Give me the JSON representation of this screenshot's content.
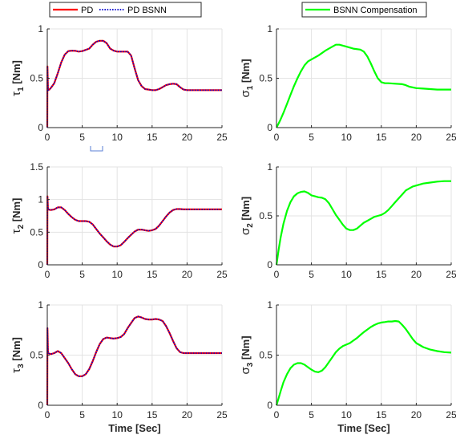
{
  "legend_left": {
    "entries": [
      {
        "label": "PD",
        "color": "#ff0000",
        "style": "solid"
      },
      {
        "label": "PD BSNN",
        "color": "#0000cc",
        "style": "dotted"
      }
    ]
  },
  "legend_right": {
    "entries": [
      {
        "label": "BSNN Compensation",
        "color": "#00ff00",
        "style": "solid"
      }
    ]
  },
  "colors": {
    "pd": "#ff0000",
    "bsnn": "#0000cc",
    "comp": "#00ff00",
    "grid": "#e3e3e3",
    "axis": "#262626"
  },
  "chart_data": [
    {
      "type": "line",
      "id": "tau1",
      "ylabel": {
        "main": "τ",
        "sub": "1",
        "unit": " [Nm]"
      },
      "xlabel": "",
      "xlim": [
        0,
        25
      ],
      "ylim": [
        0,
        1
      ],
      "xticks": [
        0,
        5,
        10,
        15,
        20,
        25
      ],
      "yticks": [
        0,
        0.5,
        1
      ],
      "grid": true,
      "series": [
        {
          "name": "PD",
          "x": [
            0,
            0.02,
            0.1,
            0.3,
            0.6,
            1,
            1.5,
            2,
            2.5,
            3,
            3.5,
            4,
            4.5,
            5,
            6,
            6.5,
            7,
            7.5,
            8,
            8.5,
            9,
            9.5,
            10,
            10.5,
            11,
            11.5,
            12,
            12.5,
            13,
            13.5,
            14,
            14.5,
            15,
            15.5,
            16,
            16.5,
            17,
            17.5,
            18,
            18.5,
            19,
            19.5,
            20,
            21,
            22,
            23,
            24,
            25
          ],
          "y": [
            0,
            0.62,
            0.38,
            0.385,
            0.41,
            0.45,
            0.55,
            0.66,
            0.74,
            0.775,
            0.78,
            0.778,
            0.77,
            0.775,
            0.8,
            0.84,
            0.87,
            0.88,
            0.88,
            0.855,
            0.8,
            0.78,
            0.77,
            0.77,
            0.77,
            0.77,
            0.73,
            0.6,
            0.48,
            0.42,
            0.39,
            0.385,
            0.38,
            0.38,
            0.39,
            0.41,
            0.43,
            0.44,
            0.445,
            0.44,
            0.41,
            0.385,
            0.38,
            0.38,
            0.38,
            0.38,
            0.38,
            0.38
          ]
        },
        {
          "name": "PD BSNN",
          "x": [
            0,
            0.02,
            0.1,
            0.3,
            0.6,
            1,
            1.5,
            2,
            2.5,
            3,
            3.5,
            4,
            4.5,
            5,
            6,
            6.5,
            7,
            7.5,
            8,
            8.5,
            9,
            9.5,
            10,
            10.5,
            11,
            11.5,
            12,
            12.5,
            13,
            13.5,
            14,
            14.5,
            15,
            15.5,
            16,
            16.5,
            17,
            17.5,
            18,
            18.5,
            19,
            19.5,
            20,
            21,
            22,
            23,
            24,
            25
          ],
          "y": [
            0,
            0.62,
            0.38,
            0.385,
            0.41,
            0.45,
            0.55,
            0.66,
            0.74,
            0.775,
            0.78,
            0.778,
            0.77,
            0.775,
            0.8,
            0.84,
            0.87,
            0.88,
            0.88,
            0.855,
            0.8,
            0.78,
            0.77,
            0.77,
            0.77,
            0.77,
            0.73,
            0.6,
            0.48,
            0.42,
            0.39,
            0.385,
            0.38,
            0.38,
            0.39,
            0.41,
            0.43,
            0.44,
            0.445,
            0.44,
            0.41,
            0.385,
            0.38,
            0.38,
            0.38,
            0.38,
            0.38,
            0.38
          ]
        }
      ]
    },
    {
      "type": "line",
      "id": "sigma1",
      "ylabel": {
        "main": "σ",
        "sub": "1",
        "unit": " [Nm]"
      },
      "xlabel": "",
      "xlim": [
        0,
        25
      ],
      "ylim": [
        0,
        1
      ],
      "xticks": [
        0,
        5,
        10,
        15,
        20,
        25
      ],
      "yticks": [
        0,
        0.5,
        1
      ],
      "grid": true,
      "series": [
        {
          "name": "BSNN Compensation",
          "x": [
            0,
            0.5,
            1,
            1.5,
            2,
            2.5,
            3,
            3.5,
            4,
            4.5,
            5,
            6,
            7,
            8,
            8.5,
            9,
            10,
            11,
            12,
            12.5,
            13,
            13.5,
            14,
            14.5,
            15,
            15.5,
            16,
            17,
            18,
            18.5,
            19,
            20,
            21,
            22,
            23,
            24,
            25
          ],
          "y": [
            0,
            0.07,
            0.15,
            0.24,
            0.33,
            0.42,
            0.5,
            0.57,
            0.63,
            0.67,
            0.69,
            0.73,
            0.78,
            0.82,
            0.84,
            0.84,
            0.82,
            0.8,
            0.79,
            0.77,
            0.72,
            0.65,
            0.57,
            0.5,
            0.46,
            0.45,
            0.45,
            0.445,
            0.44,
            0.43,
            0.415,
            0.4,
            0.395,
            0.39,
            0.385,
            0.385,
            0.385
          ]
        }
      ]
    },
    {
      "type": "line",
      "id": "tau2",
      "ylabel": {
        "main": "τ",
        "sub": "2",
        "unit": " [Nm]"
      },
      "xlabel": "",
      "xlim": [
        0,
        25
      ],
      "ylim": [
        0,
        1.5
      ],
      "xticks": [
        0,
        5,
        10,
        15,
        20,
        25
      ],
      "yticks": [
        0,
        0.5,
        1,
        1.5
      ],
      "grid": true,
      "series": [
        {
          "name": "PD",
          "x": [
            0,
            0.02,
            0.1,
            0.5,
            1,
            1.5,
            2,
            2.5,
            3,
            3.5,
            4,
            4.5,
            5,
            5.5,
            6,
            6.5,
            7,
            7.5,
            8,
            8.5,
            9,
            9.5,
            10,
            10.5,
            11,
            11.5,
            12,
            12.5,
            13,
            13.5,
            14,
            14.5,
            15,
            15.5,
            16,
            16.5,
            17,
            17.5,
            18,
            18.5,
            19,
            19.5,
            20,
            21,
            22,
            23,
            24,
            25
          ],
          "y": [
            0,
            1.05,
            0.85,
            0.84,
            0.85,
            0.88,
            0.88,
            0.84,
            0.78,
            0.73,
            0.69,
            0.67,
            0.67,
            0.67,
            0.66,
            0.62,
            0.55,
            0.48,
            0.42,
            0.36,
            0.31,
            0.28,
            0.28,
            0.3,
            0.35,
            0.41,
            0.46,
            0.51,
            0.54,
            0.54,
            0.53,
            0.52,
            0.53,
            0.55,
            0.6,
            0.67,
            0.74,
            0.8,
            0.84,
            0.855,
            0.855,
            0.85,
            0.85,
            0.85,
            0.85,
            0.85,
            0.85,
            0.85
          ]
        },
        {
          "name": "PD BSNN",
          "x": [
            0,
            0.02,
            0.1,
            0.5,
            1,
            1.5,
            2,
            2.5,
            3,
            3.5,
            4,
            4.5,
            5,
            5.5,
            6,
            6.5,
            7,
            7.5,
            8,
            8.5,
            9,
            9.5,
            10,
            10.5,
            11,
            11.5,
            12,
            12.5,
            13,
            13.5,
            14,
            14.5,
            15,
            15.5,
            16,
            16.5,
            17,
            17.5,
            18,
            18.5,
            19,
            19.5,
            20,
            21,
            22,
            23,
            24,
            25
          ],
          "y": [
            0,
            1.05,
            0.85,
            0.84,
            0.85,
            0.88,
            0.88,
            0.84,
            0.78,
            0.73,
            0.69,
            0.67,
            0.67,
            0.67,
            0.66,
            0.62,
            0.55,
            0.48,
            0.42,
            0.36,
            0.31,
            0.28,
            0.28,
            0.3,
            0.35,
            0.41,
            0.46,
            0.51,
            0.54,
            0.54,
            0.53,
            0.52,
            0.53,
            0.55,
            0.6,
            0.67,
            0.74,
            0.8,
            0.84,
            0.855,
            0.855,
            0.85,
            0.85,
            0.85,
            0.85,
            0.85,
            0.85,
            0.85
          ]
        }
      ]
    },
    {
      "type": "line",
      "id": "sigma2",
      "ylabel": {
        "main": "σ",
        "sub": "2",
        "unit": " [Nm]"
      },
      "xlabel": "",
      "xlim": [
        0,
        25
      ],
      "ylim": [
        0,
        1
      ],
      "xticks": [
        0,
        5,
        10,
        15,
        20,
        25
      ],
      "yticks": [
        0,
        0.5,
        1
      ],
      "grid": true,
      "series": [
        {
          "name": "BSNN Compensation",
          "x": [
            0,
            0.3,
            0.6,
            1,
            1.5,
            2,
            2.5,
            3,
            3.5,
            4,
            4.5,
            5,
            5.5,
            6,
            6.5,
            7,
            7.5,
            8,
            8.5,
            9,
            9.5,
            10,
            10.5,
            11,
            11.5,
            12,
            12.5,
            13,
            13.5,
            14,
            14.5,
            15,
            15.5,
            16,
            16.5,
            17,
            17.5,
            18,
            18.5,
            19,
            19.5,
            20,
            21,
            22,
            23,
            24,
            25
          ],
          "y": [
            0,
            0.15,
            0.28,
            0.42,
            0.55,
            0.64,
            0.7,
            0.73,
            0.745,
            0.75,
            0.735,
            0.71,
            0.7,
            0.69,
            0.685,
            0.67,
            0.63,
            0.57,
            0.51,
            0.46,
            0.41,
            0.37,
            0.355,
            0.355,
            0.37,
            0.4,
            0.43,
            0.45,
            0.47,
            0.49,
            0.5,
            0.51,
            0.53,
            0.56,
            0.6,
            0.64,
            0.68,
            0.72,
            0.76,
            0.78,
            0.8,
            0.81,
            0.83,
            0.84,
            0.85,
            0.855,
            0.855
          ]
        }
      ]
    },
    {
      "type": "line",
      "id": "tau3",
      "ylabel": {
        "main": "τ",
        "sub": "3",
        "unit": " [Nm]"
      },
      "xlabel": "Time [Sec]",
      "xlim": [
        0,
        25
      ],
      "ylim": [
        0,
        1
      ],
      "xticks": [
        0,
        5,
        10,
        15,
        20,
        25
      ],
      "yticks": [
        0,
        0.5,
        1
      ],
      "grid": true,
      "series": [
        {
          "name": "PD",
          "x": [
            0,
            0.02,
            0.1,
            0.5,
            1,
            1.5,
            2,
            2.5,
            3,
            3.5,
            4,
            4.5,
            5,
            5.5,
            6,
            6.5,
            7,
            7.5,
            8,
            8.5,
            9,
            9.5,
            10,
            10.5,
            11,
            11.5,
            12,
            12.5,
            13,
            13.5,
            14,
            14.5,
            15,
            15.5,
            16,
            16.5,
            17,
            17.5,
            18,
            18.5,
            19,
            19.5,
            20,
            21,
            22,
            23,
            24,
            25
          ],
          "y": [
            0,
            0.77,
            0.52,
            0.51,
            0.52,
            0.54,
            0.52,
            0.47,
            0.42,
            0.36,
            0.31,
            0.29,
            0.29,
            0.31,
            0.36,
            0.44,
            0.53,
            0.61,
            0.66,
            0.675,
            0.67,
            0.665,
            0.67,
            0.68,
            0.71,
            0.77,
            0.82,
            0.87,
            0.885,
            0.875,
            0.86,
            0.855,
            0.855,
            0.86,
            0.855,
            0.84,
            0.79,
            0.72,
            0.64,
            0.57,
            0.53,
            0.52,
            0.52,
            0.52,
            0.52,
            0.52,
            0.52,
            0.52
          ]
        },
        {
          "name": "PD BSNN",
          "x": [
            0,
            0.02,
            0.1,
            0.5,
            1,
            1.5,
            2,
            2.5,
            3,
            3.5,
            4,
            4.5,
            5,
            5.5,
            6,
            6.5,
            7,
            7.5,
            8,
            8.5,
            9,
            9.5,
            10,
            10.5,
            11,
            11.5,
            12,
            12.5,
            13,
            13.5,
            14,
            14.5,
            15,
            15.5,
            16,
            16.5,
            17,
            17.5,
            18,
            18.5,
            19,
            19.5,
            20,
            21,
            22,
            23,
            24,
            25
          ],
          "y": [
            0,
            0.77,
            0.52,
            0.51,
            0.52,
            0.54,
            0.52,
            0.47,
            0.42,
            0.36,
            0.31,
            0.29,
            0.29,
            0.31,
            0.36,
            0.44,
            0.53,
            0.61,
            0.66,
            0.675,
            0.67,
            0.665,
            0.67,
            0.68,
            0.71,
            0.77,
            0.82,
            0.87,
            0.885,
            0.875,
            0.86,
            0.855,
            0.855,
            0.86,
            0.855,
            0.84,
            0.79,
            0.72,
            0.64,
            0.57,
            0.53,
            0.52,
            0.52,
            0.52,
            0.52,
            0.52,
            0.52,
            0.52
          ]
        }
      ]
    },
    {
      "type": "line",
      "id": "sigma3",
      "ylabel": {
        "main": "σ",
        "sub": "3",
        "unit": " [Nm]"
      },
      "xlabel": "Time [Sec]",
      "xlim": [
        0,
        25
      ],
      "ylim": [
        0,
        1
      ],
      "xticks": [
        0,
        5,
        10,
        15,
        20,
        25
      ],
      "yticks": [
        0,
        0.5,
        1
      ],
      "grid": true,
      "series": [
        {
          "name": "BSNN Compensation",
          "x": [
            0,
            0.3,
            0.6,
            1,
            1.5,
            2,
            2.5,
            3,
            3.5,
            4,
            4.5,
            5,
            5.5,
            6,
            6.5,
            7,
            7.5,
            8,
            8.5,
            9,
            9.5,
            10,
            10.5,
            11,
            11.5,
            12,
            12.5,
            13,
            13.5,
            14,
            14.5,
            15,
            15.5,
            16,
            16.5,
            17,
            17.5,
            18,
            18.5,
            19,
            19.5,
            20,
            21,
            22,
            23,
            24,
            25
          ],
          "y": [
            0,
            0.07,
            0.14,
            0.23,
            0.31,
            0.37,
            0.405,
            0.42,
            0.42,
            0.405,
            0.38,
            0.355,
            0.335,
            0.33,
            0.345,
            0.38,
            0.43,
            0.48,
            0.53,
            0.565,
            0.59,
            0.605,
            0.62,
            0.645,
            0.67,
            0.7,
            0.73,
            0.755,
            0.78,
            0.8,
            0.815,
            0.825,
            0.83,
            0.835,
            0.835,
            0.84,
            0.835,
            0.8,
            0.76,
            0.71,
            0.66,
            0.62,
            0.58,
            0.555,
            0.54,
            0.53,
            0.525
          ]
        }
      ]
    }
  ]
}
